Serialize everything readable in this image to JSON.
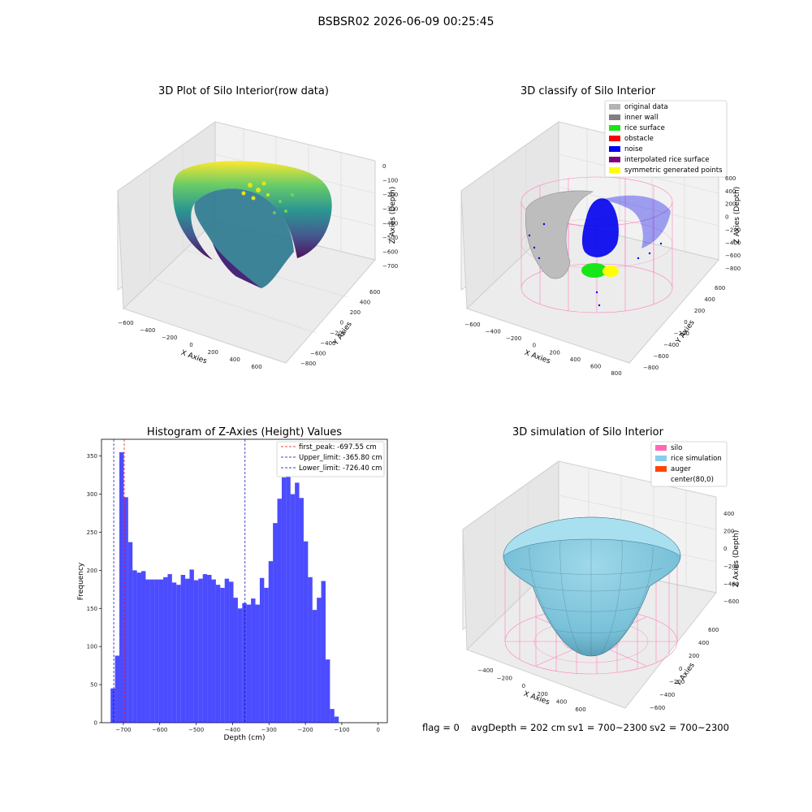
{
  "figure": {
    "suptitle": "BSBSR02 2026-06-09 00:25:45",
    "footer": {
      "flag": "flag = 0",
      "avg_depth": "avgDepth = 202 cm",
      "sv1": "sv1 = 700~2300",
      "sv2": "sv2 = 700~2300"
    }
  },
  "chart_data": [
    {
      "type": "scatter",
      "projection": "3d",
      "title": "3D Plot of Silo Interior(row data)",
      "xlabel": "X Axies",
      "ylabel": "Y Axies",
      "zlabel": "Z Axies (Depth)",
      "x_ticks": [
        "−600",
        "−400",
        "−200",
        "0",
        "200",
        "400",
        "600"
      ],
      "y_ticks": [
        "600",
        "400",
        "200",
        "0",
        "−200",
        "−400",
        "−600",
        "−800"
      ],
      "z_ticks": [
        "0",
        "−100",
        "−200",
        "−300",
        "−400",
        "−500",
        "−600",
        "−700"
      ],
      "colormap": "viridis",
      "grid": true
    },
    {
      "type": "scatter",
      "projection": "3d",
      "title": "3D classify of Silo Interior",
      "xlabel": "X Axies",
      "ylabel": "Y Axies",
      "zlabel": "Z Axies (Depth)",
      "x_ticks": [
        "−600",
        "−400",
        "−200",
        "0",
        "200",
        "400",
        "600",
        "800"
      ],
      "y_ticks": [
        "600",
        "400",
        "200",
        "0",
        "−200",
        "−400",
        "−600",
        "−800"
      ],
      "z_ticks": [
        "600",
        "400",
        "200",
        "0",
        "−200",
        "−400",
        "−600",
        "−800"
      ],
      "legend_position": "top-right",
      "legend": [
        {
          "label": "original data",
          "color": "#b3b3b3"
        },
        {
          "label": "inner wall",
          "color": "#808080"
        },
        {
          "label": "rice surface",
          "color": "#19e619"
        },
        {
          "label": "obstacle",
          "color": "#ff0000"
        },
        {
          "label": "noise",
          "color": "#0000ee"
        },
        {
          "label": "interpolated rice surface",
          "color": "#800080"
        },
        {
          "label": "symmetric generated points",
          "color": "#ffff00"
        }
      ],
      "grid": true
    },
    {
      "type": "bar",
      "subtype": "histogram",
      "title": "Histogram of Z-Axies (Height) Values",
      "xlabel": "Depth (cm)",
      "ylabel": "Frequency",
      "bin_width": 12.05,
      "bin_start": -735,
      "counts": [
        45,
        88,
        355,
        296,
        237,
        200,
        197,
        199,
        188,
        188,
        188,
        188,
        191,
        195,
        184,
        181,
        194,
        189,
        201,
        187,
        189,
        195,
        194,
        188,
        181,
        177,
        189,
        185,
        164,
        150,
        157,
        155,
        163,
        155,
        190,
        177,
        212,
        262,
        294,
        322,
        344,
        300,
        315,
        295,
        238,
        191,
        148,
        164,
        186,
        83,
        18,
        8
      ],
      "xlim": [
        -760,
        25
      ],
      "ylim": [
        0,
        372
      ],
      "x_ticks": [
        -700,
        -600,
        -500,
        -400,
        -300,
        -200,
        -100,
        0
      ],
      "y_ticks": [
        0,
        50,
        100,
        150,
        200,
        250,
        300,
        350
      ],
      "bar_color": "#0000ff",
      "lines": [
        {
          "label": "first_peak: -697.55 cm",
          "x": -697.55,
          "color": "#ff0000"
        },
        {
          "label": "Upper_limit: -365.80 cm",
          "x": -365.8,
          "color": "#0000bb"
        },
        {
          "label": "Lower_limit: -726.40 cm",
          "x": -726.4,
          "color": "#0000bb"
        }
      ],
      "legend_position": "top-right"
    },
    {
      "type": "surface",
      "projection": "3d",
      "title": "3D simulation of Silo Interior",
      "xlabel": "X Axies",
      "ylabel": "Y Axies",
      "zlabel": "Z Axies (Depth)",
      "x_ticks": [
        "−400",
        "−200",
        "0",
        "200",
        "400",
        "600"
      ],
      "y_ticks": [
        "600",
        "400",
        "200",
        "0",
        "−200",
        "−400",
        "−600"
      ],
      "z_ticks": [
        "400",
        "200",
        "0",
        "−200",
        "−400",
        "−600"
      ],
      "legend_position": "top-right",
      "legend": [
        {
          "label": "silo",
          "color": "#ff69b4"
        },
        {
          "label": "rice simulation",
          "color": "#87ceeb"
        },
        {
          "label": "auger",
          "color": "#ff4500"
        },
        {
          "label": "center(80,0)",
          "color": "#ffffff"
        }
      ],
      "grid": true
    }
  ]
}
